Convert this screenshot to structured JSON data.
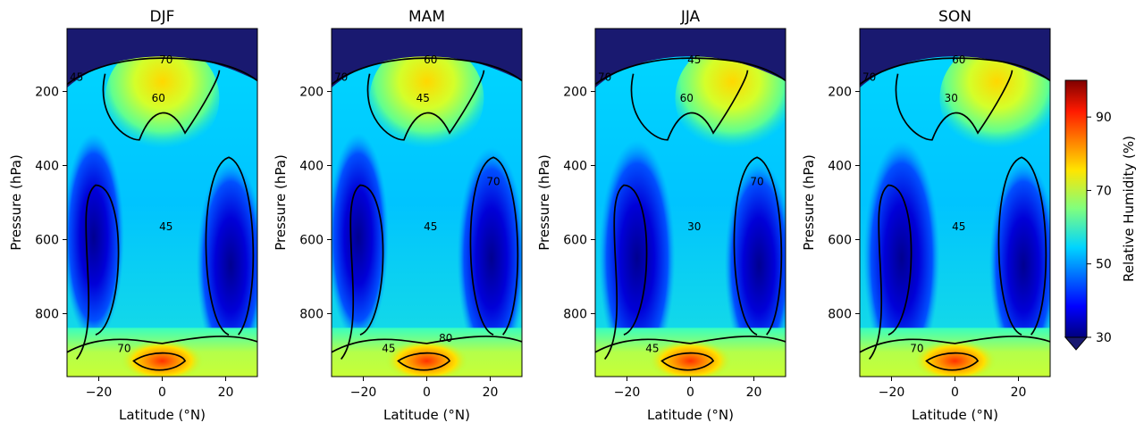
{
  "chart_data": [
    {
      "type": "contour",
      "title": "DJF",
      "xlabel": "Latitude ($^\\circ$N)",
      "ylabel": "Pressure (hPa)",
      "xlim": [
        -30,
        30
      ],
      "ylim": [
        970,
        30
      ],
      "xticks": [
        -20,
        0,
        20
      ],
      "yticks": [
        200,
        400,
        600,
        800
      ],
      "contour_labels": [
        "45",
        "70",
        "60",
        "45",
        "70"
      ]
    },
    {
      "type": "contour",
      "title": "MAM",
      "xlabel": "Latitude ($^\\circ$N)",
      "ylabel": "Pressure (hPa)",
      "xlim": [
        -30,
        30
      ],
      "ylim": [
        970,
        30
      ],
      "xticks": [
        -20,
        0,
        20
      ],
      "yticks": [
        200,
        400,
        600,
        800
      ],
      "contour_labels": [
        "70",
        "60",
        "45",
        "45",
        "45",
        "70",
        "80"
      ]
    },
    {
      "type": "contour",
      "title": "JJA",
      "xlabel": "Latitude ($^\\circ$N)",
      "ylabel": "Pressure (hPa)",
      "xlim": [
        -30,
        30
      ],
      "ylim": [
        970,
        30
      ],
      "xticks": [
        -20,
        0,
        20
      ],
      "yticks": [
        200,
        400,
        600,
        800
      ],
      "contour_labels": [
        "70",
        "45",
        "60",
        "30",
        "45",
        "70"
      ]
    },
    {
      "type": "contour",
      "title": "SON",
      "xlabel": "Latitude ($^\\circ$N)",
      "ylabel": "Pressure (hPa)",
      "xlim": [
        -30,
        30
      ],
      "ylim": [
        970,
        30
      ],
      "xticks": [
        -20,
        0,
        20
      ],
      "yticks": [
        200,
        400,
        600,
        800
      ],
      "contour_labels": [
        "70",
        "60",
        "30",
        "45",
        "70"
      ]
    }
  ],
  "colorbar": {
    "label": "Relative Humidity (%)",
    "range": [
      30,
      100
    ],
    "ticks": [
      "30",
      "50",
      "70",
      "90"
    ],
    "extend": "min",
    "colormap": "jet"
  },
  "colors": {
    "saturated_low": "#191970",
    "contour_line": "#000000"
  }
}
